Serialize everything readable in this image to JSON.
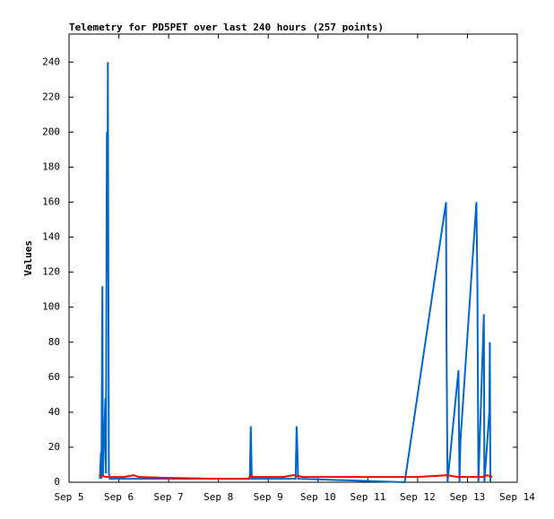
{
  "chart_data": {
    "type": "line",
    "title": "Telemetry for PD5PET over last 240 hours (257 points)",
    "y_label": "Values",
    "xlim": [
      5,
      14
    ],
    "xticks": [
      {
        "value": 5,
        "label": "Sep 5"
      },
      {
        "value": 6,
        "label": "Sep 6"
      },
      {
        "value": 7,
        "label": "Sep 7"
      },
      {
        "value": 8,
        "label": "Sep 8"
      },
      {
        "value": 9,
        "label": "Sep 9"
      },
      {
        "value": 10,
        "label": "Sep 10"
      },
      {
        "value": 11,
        "label": "Sep 11"
      },
      {
        "value": 12,
        "label": "Sep 12"
      },
      {
        "value": 13,
        "label": "Sep 13"
      },
      {
        "value": 14,
        "label": "Sep 14"
      }
    ],
    "ylim": [
      0,
      256
    ],
    "yticks": [
      0,
      20,
      40,
      60,
      80,
      100,
      120,
      140,
      160,
      180,
      200,
      220,
      240
    ],
    "grid": false,
    "series": [
      {
        "color": "#0066cc",
        "x": [
          5.62,
          5.64,
          5.65,
          5.67,
          5.68,
          5.73,
          5.74,
          5.76,
          5.77,
          5.78,
          5.79,
          5.8,
          5.82,
          8.63,
          8.65,
          8.67,
          9.55,
          9.57,
          9.58,
          9.6,
          11.74,
          12.57,
          12.58,
          12.6,
          12.82,
          12.84,
          12.86,
          13.18,
          13.2,
          13.22,
          13.33,
          13.34,
          13.44,
          13.45,
          13.46
        ],
        "values": [
          2,
          17,
          2,
          112,
          3,
          48,
          5,
          200,
          120,
          240,
          120,
          5,
          2,
          2,
          32,
          2,
          2,
          32,
          24,
          2,
          0,
          160,
          80,
          0,
          64,
          0,
          24,
          160,
          112,
          0,
          96,
          0,
          40,
          80,
          0
        ]
      },
      {
        "color": "#ff0000",
        "x": [
          5.6,
          5.75,
          6.1,
          6.3,
          6.4,
          7.0,
          8.0,
          8.6,
          8.65,
          8.7,
          9.3,
          9.5,
          9.7,
          11.0,
          12.0,
          12.3,
          12.6,
          12.8,
          13.3,
          13.4,
          13.5
        ],
        "values": [
          4,
          3,
          3,
          4,
          3,
          2.5,
          2,
          2,
          4,
          3,
          3,
          4,
          3,
          3,
          3,
          3.5,
          4,
          3,
          3,
          4,
          3
        ]
      }
    ]
  }
}
